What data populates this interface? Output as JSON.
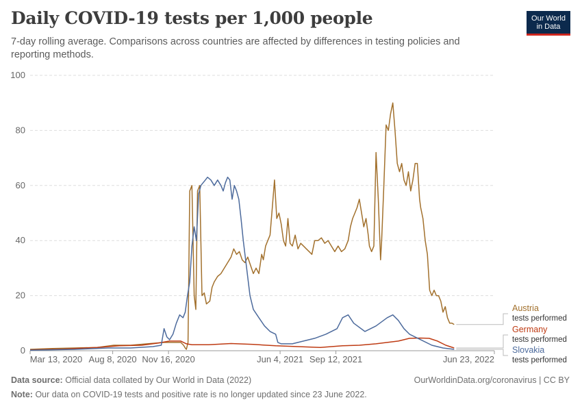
{
  "header": {
    "title": "Daily COVID-19 tests per 1,000 people",
    "subtitle": "7-day rolling average. Comparisons across countries are affected by differences in testing policies and reporting methods.",
    "logo_line1": "Our World",
    "logo_line2": "in Data"
  },
  "footer": {
    "source_label": "Data source:",
    "source_text": "Official data collated by Our World in Data (2022)",
    "link_text": "OurWorldinData.org/coronavirus | CC BY",
    "note_label": "Note:",
    "note_text": "Our data on COVID-19 tests and positive rate is no longer updated since 23 June 2022."
  },
  "chart_data": {
    "type": "line",
    "title": "Daily COVID-19 tests per 1,000 people",
    "xlabel": "",
    "ylabel": "",
    "ylim": [
      0,
      100
    ],
    "yticks": [
      0,
      20,
      40,
      60,
      80,
      100
    ],
    "x_range_days": [
      0,
      832
    ],
    "x_tick_labels": [
      {
        "day": 0,
        "label": "Mar 13, 2020"
      },
      {
        "day": 148,
        "label": "Aug 8, 2020"
      },
      {
        "day": 248,
        "label": "Nov 16, 2020"
      },
      {
        "day": 448,
        "label": "Jun 4, 2021"
      },
      {
        "day": 548,
        "label": "Sep 12, 2021"
      },
      {
        "day": 832,
        "label": "Jun 23, 2022"
      }
    ],
    "grid": true,
    "legend_position": "right, line ends",
    "series": [
      {
        "name": "Austria",
        "label_sub": "tests performed",
        "color": "#a2702c",
        "points": [
          [
            0,
            0.5
          ],
          [
            40,
            0.8
          ],
          [
            80,
            1
          ],
          [
            120,
            1.2
          ],
          [
            150,
            2
          ],
          [
            180,
            2
          ],
          [
            210,
            2.5
          ],
          [
            240,
            3
          ],
          [
            270,
            3
          ],
          [
            275,
            2
          ],
          [
            278,
            1
          ],
          [
            280,
            0.5
          ],
          [
            283,
            3
          ],
          [
            286,
            58
          ],
          [
            290,
            60
          ],
          [
            294,
            20
          ],
          [
            297,
            15
          ],
          [
            300,
            58
          ],
          [
            304,
            60
          ],
          [
            308,
            20
          ],
          [
            312,
            21
          ],
          [
            316,
            17
          ],
          [
            322,
            18
          ],
          [
            326,
            23
          ],
          [
            330,
            25
          ],
          [
            336,
            27
          ],
          [
            342,
            28
          ],
          [
            348,
            30
          ],
          [
            354,
            32
          ],
          [
            360,
            34
          ],
          [
            365,
            37
          ],
          [
            370,
            35
          ],
          [
            375,
            36
          ],
          [
            380,
            33
          ],
          [
            385,
            32
          ],
          [
            390,
            34
          ],
          [
            395,
            31
          ],
          [
            400,
            28
          ],
          [
            405,
            30
          ],
          [
            410,
            28
          ],
          [
            415,
            35
          ],
          [
            418,
            33
          ],
          [
            422,
            38
          ],
          [
            426,
            40
          ],
          [
            430,
            42
          ],
          [
            434,
            52
          ],
          [
            438,
            62
          ],
          [
            442,
            48
          ],
          [
            446,
            50
          ],
          [
            450,
            46
          ],
          [
            454,
            40
          ],
          [
            458,
            38
          ],
          [
            462,
            48
          ],
          [
            466,
            39
          ],
          [
            470,
            38
          ],
          [
            475,
            42
          ],
          [
            480,
            37
          ],
          [
            485,
            39
          ],
          [
            490,
            38
          ],
          [
            495,
            37
          ],
          [
            500,
            36
          ],
          [
            505,
            35
          ],
          [
            510,
            40
          ],
          [
            516,
            40
          ],
          [
            522,
            41
          ],
          [
            528,
            39
          ],
          [
            534,
            40
          ],
          [
            540,
            38
          ],
          [
            546,
            36
          ],
          [
            552,
            38
          ],
          [
            558,
            36
          ],
          [
            564,
            37
          ],
          [
            570,
            40
          ],
          [
            574,
            45
          ],
          [
            578,
            48
          ],
          [
            582,
            50
          ],
          [
            586,
            52
          ],
          [
            590,
            55
          ],
          [
            594,
            50
          ],
          [
            598,
            45
          ],
          [
            602,
            48
          ],
          [
            606,
            42
          ],
          [
            608,
            38
          ],
          [
            612,
            36
          ],
          [
            616,
            38
          ],
          [
            620,
            72
          ],
          [
            624,
            55
          ],
          [
            628,
            33
          ],
          [
            630,
            40
          ],
          [
            634,
            60
          ],
          [
            638,
            82
          ],
          [
            642,
            80
          ],
          [
            646,
            86
          ],
          [
            650,
            90
          ],
          [
            654,
            80
          ],
          [
            658,
            68
          ],
          [
            662,
            65
          ],
          [
            666,
            68
          ],
          [
            670,
            62
          ],
          [
            674,
            60
          ],
          [
            678,
            65
          ],
          [
            682,
            58
          ],
          [
            686,
            62
          ],
          [
            690,
            68
          ],
          [
            694,
            68
          ],
          [
            698,
            55
          ],
          [
            700,
            52
          ],
          [
            704,
            48
          ],
          [
            708,
            40
          ],
          [
            712,
            35
          ],
          [
            716,
            22
          ],
          [
            720,
            20
          ],
          [
            724,
            22
          ],
          [
            728,
            20
          ],
          [
            732,
            20
          ],
          [
            736,
            18
          ],
          [
            740,
            14
          ],
          [
            744,
            16
          ],
          [
            748,
            12
          ],
          [
            752,
            10
          ],
          [
            756,
            10
          ],
          [
            760,
            9.5
          ]
        ]
      },
      {
        "name": "Germany",
        "label_sub": "tests performed",
        "color": "#be3a12",
        "points": [
          [
            0,
            0.3
          ],
          [
            60,
            0.6
          ],
          [
            120,
            1.2
          ],
          [
            160,
            1.8
          ],
          [
            200,
            2
          ],
          [
            230,
            2.8
          ],
          [
            250,
            3.5
          ],
          [
            270,
            3.5
          ],
          [
            280,
            2.5
          ],
          [
            290,
            2.2
          ],
          [
            320,
            2.2
          ],
          [
            360,
            2.6
          ],
          [
            400,
            2.3
          ],
          [
            440,
            1.8
          ],
          [
            480,
            1.5
          ],
          [
            520,
            1.2
          ],
          [
            560,
            1.8
          ],
          [
            590,
            2
          ],
          [
            620,
            2.5
          ],
          [
            640,
            3
          ],
          [
            660,
            3.5
          ],
          [
            670,
            4
          ],
          [
            680,
            4.5
          ],
          [
            700,
            4.6
          ],
          [
            715,
            4.5
          ],
          [
            730,
            3.5
          ],
          [
            745,
            2
          ],
          [
            760,
            1
          ]
        ]
      },
      {
        "name": "Slovakia",
        "label_sub": "tests performed",
        "color": "#4c6a9c",
        "points": [
          [
            0,
            0.2
          ],
          [
            80,
            0.5
          ],
          [
            140,
            1
          ],
          [
            180,
            1
          ],
          [
            220,
            1.5
          ],
          [
            235,
            2
          ],
          [
            240,
            8
          ],
          [
            245,
            5
          ],
          [
            250,
            4
          ],
          [
            256,
            6
          ],
          [
            262,
            10
          ],
          [
            268,
            13
          ],
          [
            274,
            12
          ],
          [
            278,
            14
          ],
          [
            282,
            20
          ],
          [
            286,
            25
          ],
          [
            290,
            38
          ],
          [
            294,
            45
          ],
          [
            298,
            40
          ],
          [
            302,
            57
          ],
          [
            306,
            60
          ],
          [
            310,
            61
          ],
          [
            314,
            62
          ],
          [
            318,
            63
          ],
          [
            324,
            62
          ],
          [
            330,
            60
          ],
          [
            336,
            62
          ],
          [
            342,
            60
          ],
          [
            346,
            58
          ],
          [
            350,
            61
          ],
          [
            354,
            63
          ],
          [
            358,
            62
          ],
          [
            362,
            55
          ],
          [
            366,
            60
          ],
          [
            370,
            58
          ],
          [
            374,
            55
          ],
          [
            378,
            48
          ],
          [
            382,
            40
          ],
          [
            388,
            30
          ],
          [
            394,
            20
          ],
          [
            400,
            15
          ],
          [
            410,
            12
          ],
          [
            420,
            9
          ],
          [
            430,
            7
          ],
          [
            440,
            6
          ],
          [
            444,
            3
          ],
          [
            450,
            2.5
          ],
          [
            470,
            2.5
          ],
          [
            490,
            3.5
          ],
          [
            510,
            4.5
          ],
          [
            530,
            6
          ],
          [
            550,
            8
          ],
          [
            560,
            12
          ],
          [
            570,
            13
          ],
          [
            580,
            10
          ],
          [
            600,
            7
          ],
          [
            620,
            9
          ],
          [
            640,
            12
          ],
          [
            650,
            13
          ],
          [
            660,
            11
          ],
          [
            670,
            8
          ],
          [
            680,
            6
          ],
          [
            700,
            4
          ],
          [
            720,
            2
          ],
          [
            740,
            1
          ],
          [
            760,
            0.5
          ]
        ]
      }
    ]
  }
}
